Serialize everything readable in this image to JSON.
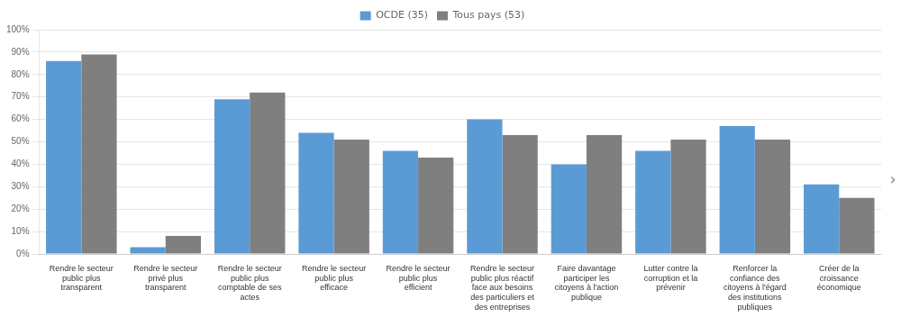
{
  "chart_data": {
    "type": "bar",
    "categories": [
      "Rendre le secteur\npublic plus\ntransparent",
      "Rendre le secteur\nprivé plus\ntransparent",
      "Rendre le secteur\npublic plus\ncomptable de ses\nactes",
      "Rendre le secteur\npublic plus\nefficace",
      "Rendre le secteur\npublic plus\nefficient",
      "Rendre le secteur\npublic plus réactif\nface aux besoins\ndes particuliers et\ndes entreprises",
      "Faire davantage\nparticiper les\ncitoyens à l'action\npublique",
      "Lutter contre la\ncorruption et la\nprévenir",
      "Renforcer la\nconfiance des\ncitoyens à l'égard\ndes institutions\npubliques",
      "Créer de la\ncroissance\néconomique"
    ],
    "series": [
      {
        "name": "OCDE (35)",
        "color": "#5B9BD5",
        "values": [
          86,
          3,
          69,
          54,
          46,
          60,
          40,
          46,
          57,
          31
        ]
      },
      {
        "name": "Tous pays (53)",
        "color": "#7F7F7F",
        "values": [
          89,
          8,
          72,
          51,
          43,
          53,
          53,
          51,
          51,
          25
        ]
      }
    ],
    "ylim": [
      0,
      100
    ],
    "yticks": [
      {
        "value": 0,
        "label": "0%"
      },
      {
        "value": 10,
        "label": "10%"
      },
      {
        "value": 20,
        "label": "20%"
      },
      {
        "value": 30,
        "label": "30%"
      },
      {
        "value": 40,
        "label": "40%"
      },
      {
        "value": 50,
        "label": "50%"
      },
      {
        "value": 60,
        "label": "60%"
      },
      {
        "value": 70,
        "label": "70%"
      },
      {
        "value": 80,
        "label": "80%"
      },
      {
        "value": 90,
        "label": "90%"
      },
      {
        "value": 100,
        "label": "100%"
      }
    ],
    "grid": true,
    "legend": "top",
    "annotation": "›"
  }
}
